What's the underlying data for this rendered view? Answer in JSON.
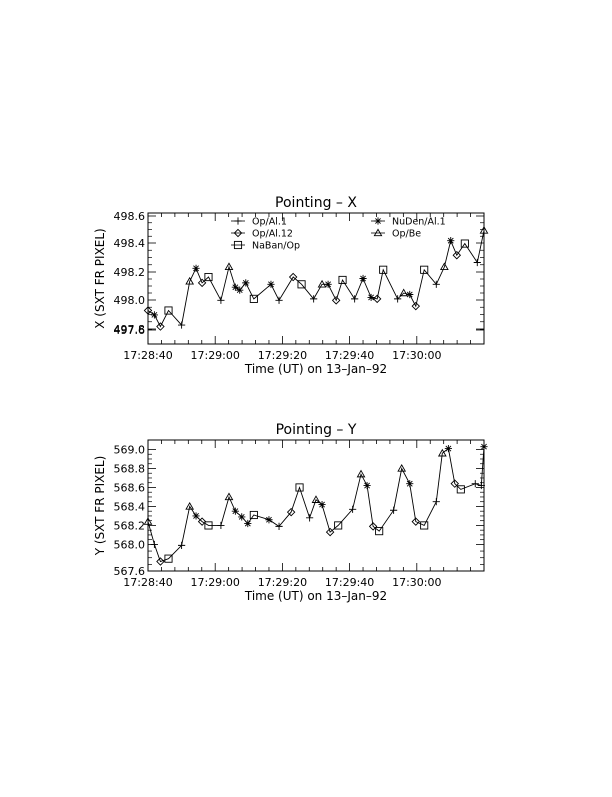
{
  "chart_data": [
    {
      "type": "line",
      "title": "Pointing – X",
      "xlabel": "Time (UT) on 13–Jan–92",
      "ylabel": "X (SXT FR PIXEL)",
      "x_tick_labels": [
        "17:28:40",
        "17:29:00",
        "17:29:20",
        "17:29:40",
        "17:30:00"
      ],
      "x_tick_seconds": [
        40,
        60,
        80,
        100,
        120
      ],
      "xlim_seconds": [
        40,
        140
      ],
      "y_tick_labels": [
        "497.6",
        "497.8",
        "498.0",
        "498.2",
        "498.4",
        "498.6"
      ],
      "ylim": [
        497.7,
        498.6
      ],
      "grid": false,
      "legend_position": "top-left",
      "legend": [
        {
          "label": "Op/Al.1",
          "marker": "plus"
        },
        {
          "label": "NuDen/Al.1",
          "marker": "asterisk"
        },
        {
          "label": "Op/Al.12",
          "marker": "diamond"
        },
        {
          "label": "Op/Be",
          "marker": "triangle"
        },
        {
          "label": "NaBan/Op",
          "marker": "square"
        }
      ],
      "points": [
        {
          "t": 40.0,
          "v": 497.93,
          "m": "diamond"
        },
        {
          "t": 41.9,
          "v": 497.9,
          "m": "asterisk"
        },
        {
          "t": 43.7,
          "v": 497.82,
          "m": "diamond"
        },
        {
          "t": 46.1,
          "v": 497.93,
          "m": "square"
        },
        {
          "t": 50.0,
          "v": 497.83,
          "m": "plus"
        },
        {
          "t": 52.4,
          "v": 498.13,
          "m": "triangle"
        },
        {
          "t": 54.3,
          "v": 498.22,
          "m": "asterisk"
        },
        {
          "t": 56.1,
          "v": 498.12,
          "m": "diamond"
        },
        {
          "t": 58.0,
          "v": 498.16,
          "m": "square"
        },
        {
          "t": 61.7,
          "v": 498.0,
          "m": "plus"
        },
        {
          "t": 64.1,
          "v": 498.23,
          "m": "triangle"
        },
        {
          "t": 66.0,
          "v": 498.09,
          "m": "asterisk"
        },
        {
          "t": 67.3,
          "v": 498.07,
          "m": "asterisk"
        },
        {
          "t": 69.1,
          "v": 498.12,
          "m": "asterisk"
        },
        {
          "t": 71.5,
          "v": 498.01,
          "m": "square"
        },
        {
          "t": 76.6,
          "v": 498.11,
          "m": "asterisk"
        },
        {
          "t": 79.0,
          "v": 498.0,
          "m": "plus"
        },
        {
          "t": 83.2,
          "v": 498.16,
          "m": "diamond"
        },
        {
          "t": 85.7,
          "v": 498.11,
          "m": "square"
        },
        {
          "t": 89.3,
          "v": 498.01,
          "m": "plus"
        },
        {
          "t": 91.8,
          "v": 498.11,
          "m": "triangle"
        },
        {
          "t": 93.6,
          "v": 498.11,
          "m": "asterisk"
        },
        {
          "t": 96.0,
          "v": 498.0,
          "m": "diamond"
        },
        {
          "t": 97.9,
          "v": 498.14,
          "m": "square"
        },
        {
          "t": 101.5,
          "v": 498.01,
          "m": "plus"
        },
        {
          "t": 104.0,
          "v": 498.15,
          "m": "asterisk"
        },
        {
          "t": 106.4,
          "v": 498.02,
          "m": "asterisk"
        },
        {
          "t": 108.2,
          "v": 498.01,
          "m": "diamond"
        },
        {
          "t": 110.0,
          "v": 498.21,
          "m": "square"
        },
        {
          "t": 114.3,
          "v": 498.01,
          "m": "plus"
        },
        {
          "t": 116.1,
          "v": 498.05,
          "m": "triangle"
        },
        {
          "t": 117.9,
          "v": 498.04,
          "m": "asterisk"
        },
        {
          "t": 119.7,
          "v": 497.96,
          "m": "diamond"
        },
        {
          "t": 122.2,
          "v": 498.21,
          "m": "square"
        },
        {
          "t": 125.8,
          "v": 498.11,
          "m": "plus"
        },
        {
          "t": 128.2,
          "v": 498.23,
          "m": "triangle"
        },
        {
          "t": 130.1,
          "v": 498.41,
          "m": "asterisk"
        },
        {
          "t": 131.9,
          "v": 498.31,
          "m": "diamond"
        },
        {
          "t": 134.3,
          "v": 498.39,
          "m": "square"
        },
        {
          "t": 138.0,
          "v": 498.26,
          "m": "plus"
        },
        {
          "t": 140.0,
          "v": 498.48,
          "m": "triangle"
        }
      ]
    },
    {
      "type": "line",
      "title": "Pointing – Y",
      "xlabel": "Time (UT) on 13–Jan–92",
      "ylabel": "Y (SXT FR PIXEL)",
      "x_tick_labels": [
        "17:28:40",
        "17:29:00",
        "17:29:20",
        "17:29:40",
        "17:30:00"
      ],
      "x_tick_seconds": [
        40,
        60,
        80,
        100,
        120
      ],
      "xlim_seconds": [
        40,
        140
      ],
      "y_tick_labels": [
        "567.6",
        "568.0",
        "568.2",
        "568.4",
        "568.6",
        "568.8",
        "569.0"
      ],
      "ylim": [
        567.72,
        569.1
      ],
      "grid": false,
      "points": [
        {
          "t": 40.0,
          "v": 568.24,
          "m": "triangle"
        },
        {
          "t": 41.9,
          "v": 568.0,
          "m": "plus"
        },
        {
          "t": 43.7,
          "v": 567.82,
          "m": "diamond"
        },
        {
          "t": 46.1,
          "v": 567.85,
          "m": "square"
        },
        {
          "t": 50.0,
          "v": 567.99,
          "m": "plus"
        },
        {
          "t": 52.4,
          "v": 568.4,
          "m": "triangle"
        },
        {
          "t": 54.3,
          "v": 568.3,
          "m": "asterisk"
        },
        {
          "t": 56.1,
          "v": 568.24,
          "m": "diamond"
        },
        {
          "t": 58.0,
          "v": 568.2,
          "m": "square"
        },
        {
          "t": 61.7,
          "v": 568.2,
          "m": "plus"
        },
        {
          "t": 64.1,
          "v": 568.5,
          "m": "triangle"
        },
        {
          "t": 66.0,
          "v": 568.35,
          "m": "asterisk"
        },
        {
          "t": 67.9,
          "v": 568.29,
          "m": "asterisk"
        },
        {
          "t": 69.7,
          "v": 568.22,
          "m": "asterisk"
        },
        {
          "t": 71.5,
          "v": 568.31,
          "m": "square"
        },
        {
          "t": 76.0,
          "v": 568.26,
          "m": "asterisk"
        },
        {
          "t": 79.0,
          "v": 568.19,
          "m": "plus"
        },
        {
          "t": 82.6,
          "v": 568.34,
          "m": "diamond"
        },
        {
          "t": 85.1,
          "v": 568.6,
          "m": "square"
        },
        {
          "t": 88.1,
          "v": 568.28,
          "m": "plus"
        },
        {
          "t": 90.0,
          "v": 568.47,
          "m": "triangle"
        },
        {
          "t": 91.8,
          "v": 568.42,
          "m": "asterisk"
        },
        {
          "t": 94.2,
          "v": 568.13,
          "m": "diamond"
        },
        {
          "t": 96.6,
          "v": 568.2,
          "m": "square"
        },
        {
          "t": 100.9,
          "v": 568.37,
          "m": "plus"
        },
        {
          "t": 103.4,
          "v": 568.74,
          "m": "triangle"
        },
        {
          "t": 105.2,
          "v": 568.62,
          "m": "asterisk"
        },
        {
          "t": 107.0,
          "v": 568.19,
          "m": "diamond"
        },
        {
          "t": 108.8,
          "v": 568.14,
          "m": "square"
        },
        {
          "t": 113.1,
          "v": 568.36,
          "m": "plus"
        },
        {
          "t": 115.5,
          "v": 568.8,
          "m": "triangle"
        },
        {
          "t": 117.9,
          "v": 568.64,
          "m": "asterisk"
        },
        {
          "t": 119.7,
          "v": 568.24,
          "m": "diamond"
        },
        {
          "t": 122.2,
          "v": 568.2,
          "m": "square"
        },
        {
          "t": 125.8,
          "v": 568.45,
          "m": "plus"
        },
        {
          "t": 127.6,
          "v": 568.96,
          "m": "triangle"
        },
        {
          "t": 129.4,
          "v": 569.01,
          "m": "asterisk"
        },
        {
          "t": 131.3,
          "v": 568.64,
          "m": "diamond"
        },
        {
          "t": 133.1,
          "v": 568.58,
          "m": "square"
        },
        {
          "t": 137.4,
          "v": 568.64,
          "m": "plus"
        },
        {
          "t": 139.2,
          "v": 568.62,
          "m": "plus"
        },
        {
          "t": 140.0,
          "v": 569.03,
          "m": "asterisk"
        }
      ]
    }
  ]
}
